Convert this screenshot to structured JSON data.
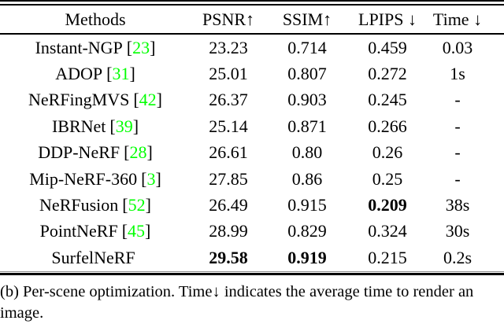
{
  "colors": {
    "text": "#000000",
    "background": "#ffffff",
    "citation_green": "#00ff00"
  },
  "table": {
    "headers": {
      "methods": "Methods",
      "psnr": "PSNR↑",
      "ssim": "SSIM↑",
      "lpips": "LPIPS ↓",
      "time": "Time ↓"
    },
    "rows": [
      {
        "method": "Instant-NGP",
        "bracket_open": "[",
        "cite": "23",
        "bracket_close": "]",
        "psnr": "23.23",
        "ssim": "0.714",
        "lpips": "0.459",
        "time": "0.03"
      },
      {
        "method": "ADOP",
        "bracket_open": "[",
        "cite": "31",
        "bracket_close": "]",
        "psnr": "25.01",
        "ssim": "0.807",
        "lpips": "0.272",
        "time": "1s"
      },
      {
        "method": "NeRFingMVS",
        "bracket_open": "[",
        "cite": "42",
        "bracket_close": "]",
        "psnr": "26.37",
        "ssim": "0.903",
        "lpips": "0.245",
        "time": "-"
      },
      {
        "method": "IBRNet",
        "bracket_open": "[",
        "cite": "39",
        "bracket_close": "]",
        "psnr": "25.14",
        "ssim": "0.871",
        "lpips": "0.266",
        "time": "-"
      },
      {
        "method": "DDP-NeRF",
        "bracket_open": "[",
        "cite": "28",
        "bracket_close": "]",
        "psnr": "26.61",
        "ssim": "0.80",
        "lpips": "0.26",
        "time": "-"
      },
      {
        "method": "Mip-NeRF-360",
        "bracket_open": "[",
        "cite": "3",
        "bracket_close": "]",
        "psnr": "27.85",
        "ssim": "0.86",
        "lpips": "0.25",
        "time": "-"
      },
      {
        "method": "NeRFusion",
        "bracket_open": "[",
        "cite": "52",
        "bracket_close": "]",
        "psnr": "26.49",
        "ssim": "0.915",
        "lpips": "0.209",
        "time": "38s"
      },
      {
        "method": "PointNeRF",
        "bracket_open": "[",
        "cite": "45",
        "bracket_close": "]",
        "psnr": "28.99",
        "ssim": "0.829",
        "lpips": "0.324",
        "time": "30s"
      },
      {
        "method": "SurfelNeRF",
        "psnr": "29.58",
        "ssim": "0.919",
        "lpips": "0.215",
        "time": "0.2s"
      }
    ]
  },
  "caption": "(b) Per-scene optimization. Time↓ indicates the average time to render an image."
}
